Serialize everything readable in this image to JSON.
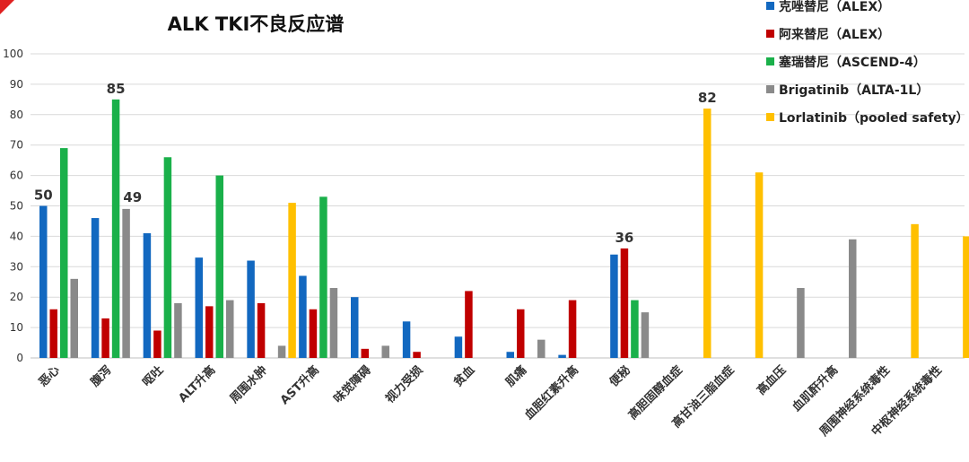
{
  "chart_data": {
    "type": "bar",
    "title": "ALK TKI不良反应谱",
    "categories": [
      "恶心",
      "腹泻",
      "呕吐",
      "ALT升高",
      "周围水肿",
      "AST升高",
      "味觉障碍",
      "视力受损",
      "贫血",
      "肌痛",
      "血胆红素升高",
      "便秘",
      "高胆固醇血症",
      "高甘油三脂血症",
      "高血压",
      "血肌酐升高",
      "周围神经系统毒性",
      "中枢神经系统毒性"
    ],
    "series": [
      {
        "name": "克唑替尼（ALEX）",
        "color": "#1268c0",
        "values": [
          50,
          46,
          41,
          33,
          32,
          27,
          20,
          12,
          7,
          2,
          1,
          34,
          null,
          null,
          null,
          null,
          null,
          null
        ]
      },
      {
        "name": "阿来替尼（ALEX）",
        "color": "#c00000",
        "values": [
          16,
          13,
          9,
          17,
          18,
          16,
          3,
          2,
          22,
          16,
          19,
          36,
          null,
          null,
          null,
          null,
          null,
          null
        ]
      },
      {
        "name": "塞瑞替尼（ASCEND-4）",
        "color": "#1ab04a",
        "values": [
          69,
          85,
          66,
          60,
          null,
          53,
          null,
          null,
          null,
          null,
          null,
          19,
          null,
          null,
          null,
          null,
          null,
          null
        ]
      },
      {
        "name": "Brigatinib（ALTA-1L）",
        "color": "#8a8a8a",
        "values": [
          26,
          49,
          18,
          19,
          4,
          23,
          4,
          null,
          null,
          6,
          null,
          15,
          null,
          null,
          23,
          39,
          null,
          null
        ]
      },
      {
        "name": "Lorlatinib（pooled safety）",
        "color": "#ffc000",
        "values": [
          null,
          null,
          null,
          null,
          51,
          null,
          null,
          null,
          null,
          null,
          null,
          null,
          82,
          61,
          null,
          null,
          44,
          40
        ]
      }
    ],
    "data_labels": [
      {
        "category": 0,
        "series": 0,
        "text": "50"
      },
      {
        "category": 1,
        "series": 2,
        "text": "85"
      },
      {
        "category": 1,
        "series": 3,
        "text": "49"
      },
      {
        "category": 11,
        "series": 1,
        "text": "36"
      },
      {
        "category": 12,
        "series": 4,
        "text": "82"
      }
    ],
    "ylim": [
      0,
      100
    ],
    "yticks": [
      "0",
      "10",
      "20",
      "30",
      "40",
      "50",
      "60",
      "70",
      "80",
      "90",
      "100"
    ],
    "grid": true,
    "legend": "top-right"
  }
}
